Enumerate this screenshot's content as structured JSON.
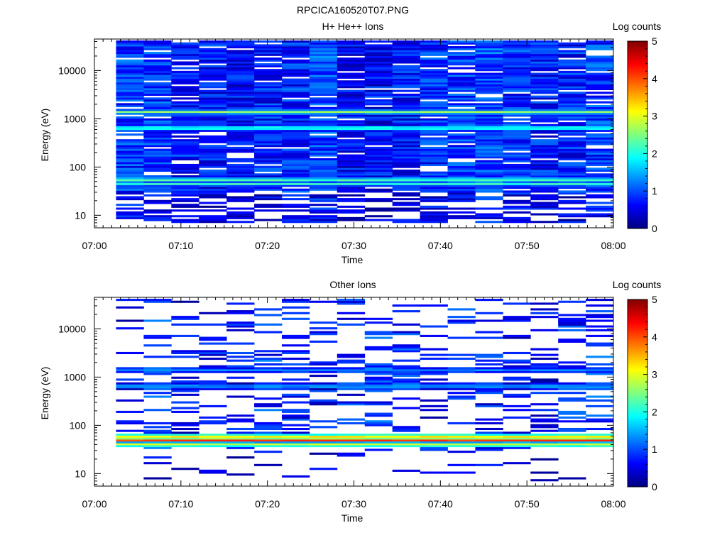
{
  "figure_title": "RPCICA160520T07.PNG",
  "colors": {
    "colormap": [
      "#00007f",
      "#0000ff",
      "#007fff",
      "#00ffff",
      "#7fff7f",
      "#ffff00",
      "#ff7f00",
      "#ff0000",
      "#7f0000"
    ]
  },
  "chart_data": [
    {
      "type": "heatmap",
      "title": "H+ He++ Ions",
      "xlabel": "Time",
      "ylabel": "Energy (eV)",
      "x_ticks": [
        "07:00",
        "07:10",
        "07:20",
        "07:30",
        "07:40",
        "07:50",
        "08:00"
      ],
      "x_range_minutes": [
        0,
        60
      ],
      "y_scale": "log",
      "y_range": [
        5.5,
        45000
      ],
      "y_ticks": [
        10,
        100,
        1000,
        10000
      ],
      "y_tick_labels": [
        "10",
        "100",
        "1000",
        "10000"
      ],
      "colorbar": {
        "label": "Log counts",
        "range": [
          0,
          5
        ],
        "ticks": [
          "0",
          "1",
          "2",
          "3",
          "4",
          "5"
        ]
      },
      "time_range_minutes": [
        2.5,
        60
      ],
      "columns": 18,
      "energy_range_eV": [
        7,
        42000
      ],
      "energy_bins": 96,
      "bands": [
        {
          "energy_eV": 1400,
          "log_counts": 2.6
        },
        {
          "energy_eV": 650,
          "log_counts": 2.2
        },
        {
          "energy_eV": 55,
          "log_counts": 2.3
        },
        {
          "energy_eV": 45,
          "log_counts": 2.1
        }
      ],
      "background_log_counts": 0.8,
      "low_energy_cutoff_eV": 30,
      "sparsity": 0.12
    },
    {
      "type": "heatmap",
      "title": "Other Ions",
      "xlabel": "Time",
      "ylabel": "Energy (eV)",
      "x_ticks": [
        "07:00",
        "07:10",
        "07:20",
        "07:30",
        "07:40",
        "07:50",
        "08:00"
      ],
      "x_range_minutes": [
        0,
        60
      ],
      "y_scale": "log",
      "y_range": [
        5.5,
        45000
      ],
      "y_ticks": [
        10,
        100,
        1000,
        10000
      ],
      "y_tick_labels": [
        "10",
        "100",
        "1000",
        "10000"
      ],
      "colorbar": {
        "label": "Log counts",
        "range": [
          0,
          5
        ],
        "ticks": [
          "0",
          "1",
          "2",
          "3",
          "4",
          "5"
        ]
      },
      "time_range_minutes": [
        2.5,
        60
      ],
      "columns": 18,
      "energy_range_eV": [
        7,
        42000
      ],
      "energy_bins": 96,
      "bands": [
        {
          "energy_eV": 50,
          "log_counts": 4.2
        },
        {
          "energy_eV": 60,
          "log_counts": 3.3
        },
        {
          "energy_eV": 40,
          "log_counts": 3.0
        },
        {
          "energy_eV": 1400,
          "log_counts": 1.3
        },
        {
          "energy_eV": 650,
          "log_counts": 1.5
        }
      ],
      "background_log_counts": 0.7,
      "low_energy_cutoff_eV": 30,
      "sparsity": 0.72
    }
  ]
}
